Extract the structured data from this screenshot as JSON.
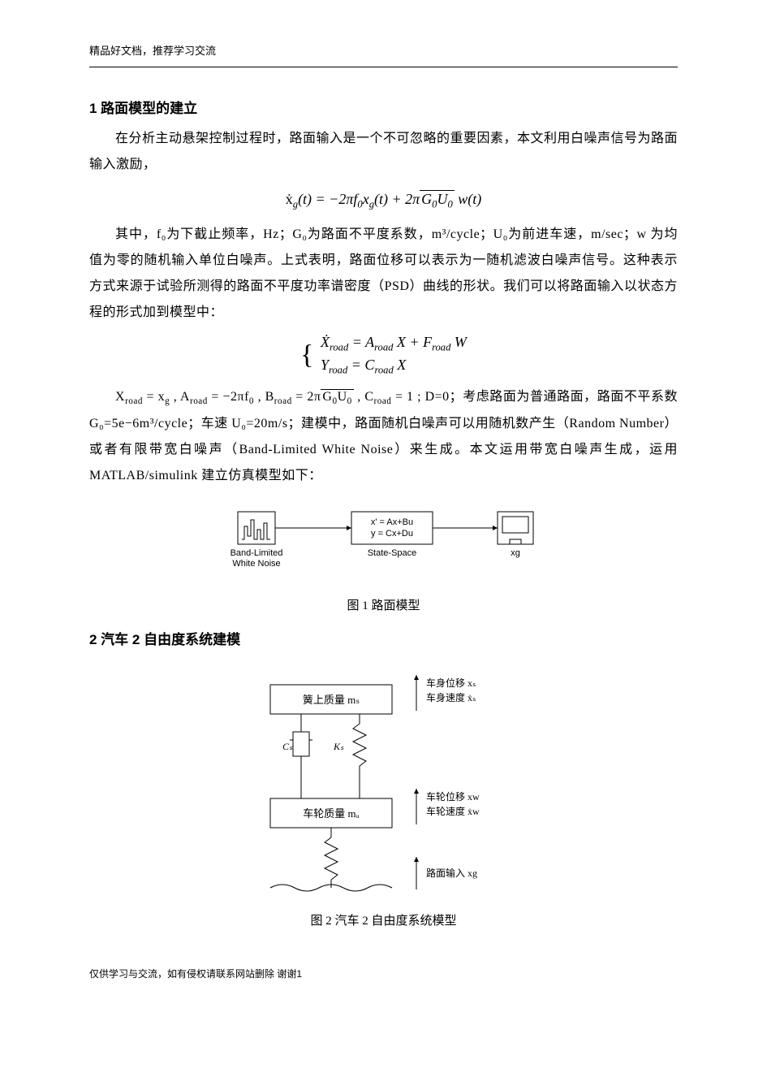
{
  "header": {
    "note": "精品好文档，推荐学习交流"
  },
  "footer": {
    "note": "仅供学习与交流，如有侵权请联系网站删除  谢谢1"
  },
  "section1": {
    "title": "1 路面模型的建立",
    "p1": "在分析主动悬架控制过程时，路面输入是一个不可忽略的重要因素，本文利用白噪声信号为路面输入激励，",
    "eq1_html": "<span class='upright'>ẋ</span><sub>g</sub>(t) = −2π<i>f</i><sub>0</sub>x<sub>g</sub>(t) + 2π<span class='sqrt'>G<sub>0</sub>U<sub>0</sub></span> w(t)",
    "p2": "其中，f₀为下截止频率，Hz；G₀为路面不平度系数，m³/cycle；U₀为前进车速，m/sec；w 为均值为零的随机输入单位白噪声。上式表明，路面位移可以表示为一随机滤波白噪声信号。这种表示方式来源于试验所测得的路面不平度功率谱密度（PSD）曲线的形状。我们可以将路面输入以状态方程的形式加到模型中：",
    "eq2_line1": "Ẋ<sub>road</sub> = A<sub>road</sub> X + F<sub>road</sub> W",
    "eq2_line2": "Y<sub>road</sub> = C<sub>road</sub> X",
    "p3_html": "X<sub>road</sub> = x<sub>g</sub> , A<sub>road</sub> = −2πf<sub>0</sub> , B<sub>road</sub> = 2π<span class='sqrt'>G<sub>0</sub>U<sub>0</sub></span> , C<sub>road</sub> = 1 ; D=0；考虑路面为普通路面，路面不平系数 G₀=5e−6m³/cycle；车速 U₀=20m/s；建模中，路面随机白噪声可以用随机数产生（Random Number）或者有限带宽白噪声（Band-Limited White Noise）来生成。本文运用带宽白噪声生成，运用 MATLAB/simulink 建立仿真模型如下：",
    "fig1_caption": "图 1 路面模型"
  },
  "section2": {
    "title": "2 汽车 2 自由度系统建模",
    "fig2_caption": "图 2 汽车 2 自由度系统模型"
  },
  "fig1": {
    "block1_label1": "Band-Limited",
    "block1_label2": "White Noise",
    "block2_line1": "x' = Ax+Bu",
    "block2_line2": "y = Cx+Du",
    "block2_label": "State-Space",
    "block3_label": "xg",
    "colors": {
      "line": "#000000",
      "bg": "#ffffff"
    }
  },
  "fig2": {
    "mass_top": "簧上质量 mₛ",
    "mass_bottom": "车轮质量 mᵤ",
    "damper": "Cₛ",
    "spring": "Kₛ",
    "arrow1_l1": "车身位移 xₛ",
    "arrow1_l2": "车身速度 ẋₛ",
    "arrow2_l1": "车轮位移 xw",
    "arrow2_l2": "车轮速度 ẋw",
    "arrow3": "路面输入 xg",
    "colors": {
      "line": "#000000",
      "bg": "#ffffff"
    }
  }
}
